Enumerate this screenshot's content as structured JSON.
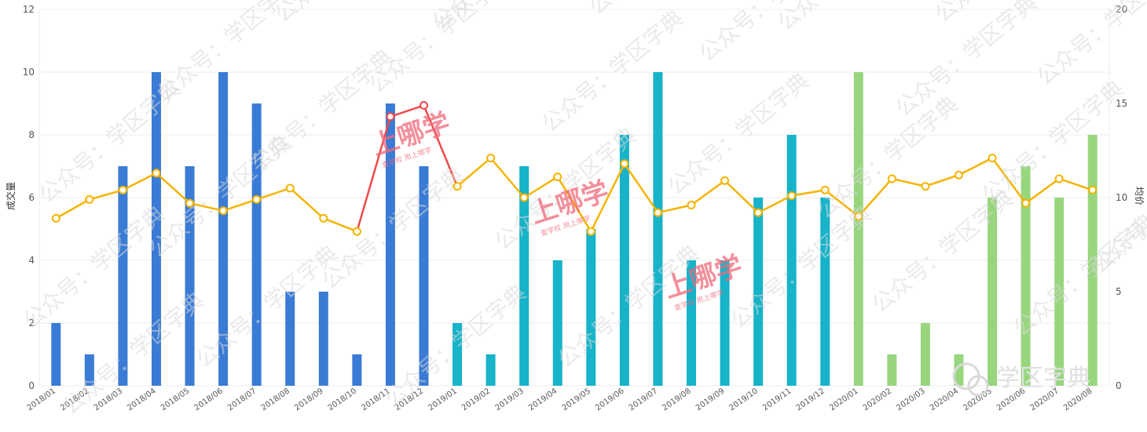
{
  "chart_data": {
    "type": "bar+line",
    "x": [
      "2018/01",
      "2018/02",
      "2018/03",
      "2018/04",
      "2018/05",
      "2018/06",
      "2018/07",
      "2018/08",
      "2018/09",
      "2018/10",
      "2018/11",
      "2018/12",
      "2019/01",
      "2019/02",
      "2019/03",
      "2019/04",
      "2019/05",
      "2019/06",
      "2019/07",
      "2019/08",
      "2019/09",
      "2019/10",
      "2019/11",
      "2019/12",
      "2020/01",
      "2020/02",
      "2020/03",
      "2020/04",
      "2020/05",
      "2020/06",
      "2020/07",
      "2020/08"
    ],
    "series": [
      {
        "type": "bar",
        "axis": "left",
        "values": [
          2,
          1,
          7,
          10,
          7,
          10,
          9,
          3,
          3,
          1,
          9,
          7,
          2,
          1,
          7,
          4,
          5,
          8,
          10,
          4,
          4,
          6,
          8,
          6,
          10,
          1,
          2,
          1,
          6,
          7,
          6,
          8
        ]
      },
      {
        "type": "line",
        "axis": "right",
        "values": [
          8.9,
          9.9,
          10.4,
          11.3,
          9.7,
          9.3,
          9.9,
          10.5,
          8.9,
          8.2,
          14.3,
          14.9,
          10.6,
          12.1,
          10.0,
          11.1,
          8.2,
          11.8,
          9.2,
          9.6,
          10.9,
          9.2,
          10.1,
          10.4,
          9.0,
          11.0,
          10.6,
          11.2,
          12.1,
          9.7,
          11.0,
          10.4
        ]
      }
    ],
    "ylabel_left": "成交量",
    "ylabel_right": "均价",
    "ylim_left": [
      0,
      12
    ],
    "ylim_right": [
      0,
      20
    ],
    "yticks_left": [
      "0",
      "2",
      "4",
      "6",
      "8",
      "10",
      "12"
    ],
    "yticks_right": [
      "0",
      "5",
      "10",
      "15",
      "20"
    ],
    "grid": true,
    "colors": {
      "bar_2018": "#3a7bd5",
      "bar_2019": "#16b3c9",
      "bar_2020": "#98d67e",
      "line": "#f5b400",
      "line_highlight": "#ef4a4a"
    }
  },
  "watermarks": {
    "text": "公众号：学区字典",
    "logo_main": "上哪学",
    "logo_sub": "查学校 用上哪学",
    "brand": "学区字典"
  }
}
